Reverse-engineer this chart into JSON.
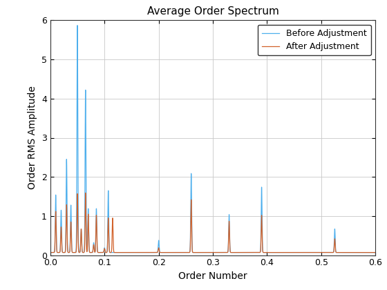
{
  "title": "Average Order Spectrum",
  "xlabel": "Order Number",
  "ylabel": "Order RMS Amplitude",
  "xlim": [
    0,
    0.6
  ],
  "ylim": [
    0,
    6
  ],
  "xticks": [
    0,
    0.1,
    0.2,
    0.3,
    0.4,
    0.5,
    0.6
  ],
  "yticks": [
    0,
    1,
    2,
    3,
    4,
    5,
    6
  ],
  "color_before": "#4DAFED",
  "color_after": "#D2622A",
  "legend_before": "Before Adjustment",
  "legend_after": "After Adjustment",
  "peaks_before": [
    [
      0.01,
      1.47
    ],
    [
      0.02,
      1.08
    ],
    [
      0.03,
      2.38
    ],
    [
      0.038,
      1.21
    ],
    [
      0.05,
      5.8
    ],
    [
      0.057,
      0.6
    ],
    [
      0.065,
      4.15
    ],
    [
      0.07,
      1.12
    ],
    [
      0.08,
      0.25
    ],
    [
      0.085,
      1.12
    ],
    [
      0.1,
      0.12
    ],
    [
      0.107,
      1.58
    ],
    [
      0.2,
      0.31
    ],
    [
      0.26,
      2.02
    ],
    [
      0.33,
      0.97
    ],
    [
      0.39,
      1.67
    ],
    [
      0.525,
      0.6
    ]
  ],
  "peaks_after": [
    [
      0.01,
      1.05
    ],
    [
      0.02,
      0.65
    ],
    [
      0.03,
      1.22
    ],
    [
      0.038,
      0.78
    ],
    [
      0.05,
      1.5
    ],
    [
      0.057,
      0.6
    ],
    [
      0.065,
      1.52
    ],
    [
      0.07,
      0.98
    ],
    [
      0.08,
      0.2
    ],
    [
      0.085,
      0.95
    ],
    [
      0.1,
      0.1
    ],
    [
      0.107,
      0.88
    ],
    [
      0.115,
      0.88
    ],
    [
      0.2,
      0.12
    ],
    [
      0.26,
      1.35
    ],
    [
      0.33,
      0.8
    ],
    [
      0.39,
      0.95
    ],
    [
      0.525,
      0.35
    ]
  ],
  "baseline_before": 0.07,
  "baseline_after": 0.07,
  "background_color": "#ffffff",
  "axes_bg_color": "#ffffff",
  "grid_color": "#c8c8c8",
  "figsize": [
    5.6,
    4.2
  ],
  "dpi": 100
}
